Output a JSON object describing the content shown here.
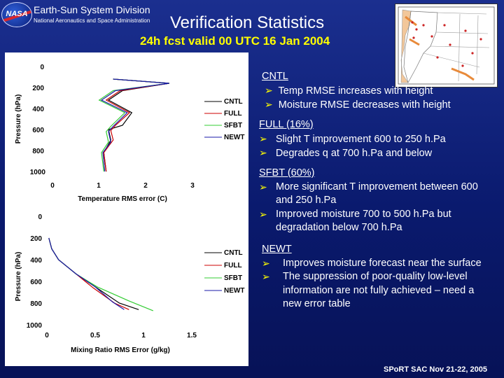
{
  "header": {
    "division": "Earth-Sun System Division",
    "agency": "National Aeronautics and Space Administration",
    "logo_text": "NASA",
    "title": "Verification Statistics",
    "subtitle": "24h fcst valid 00 UTC 16 Jan 2004"
  },
  "colors": {
    "subtitle": "#ffff00",
    "bullet": "#ffff00",
    "CNTL": "#000000",
    "FULL": "#cc0000",
    "SFBT": "#33cc33",
    "NEWT": "#1a1aaa"
  },
  "chart_data": [
    {
      "type": "line",
      "xlabel": "Temperature RMS error (C)",
      "ylabel": "Pressure (hPa)",
      "x_ticks": [
        "0",
        "1",
        "2",
        "3"
      ],
      "y_ticks": [
        "0",
        "200",
        "400",
        "600",
        "800",
        "1000"
      ],
      "xlim": [
        0,
        3
      ],
      "ylim": [
        1000,
        0
      ],
      "legend": "right",
      "series": [
        {
          "name": "CNTL",
          "color": "#000000",
          "points": [
            [
              1.3,
              120
            ],
            [
              2.5,
              160
            ],
            [
              1.5,
              230
            ],
            [
              1.2,
              320
            ],
            [
              1.7,
              440
            ],
            [
              1.5,
              560
            ],
            [
              1.2,
              600
            ],
            [
              1.25,
              700
            ],
            [
              1.1,
              820
            ],
            [
              1.15,
              1000
            ]
          ]
        },
        {
          "name": "FULL",
          "color": "#cc0000",
          "points": [
            [
              1.3,
              120
            ],
            [
              2.5,
              160
            ],
            [
              1.45,
              230
            ],
            [
              1.15,
              320
            ],
            [
              1.65,
              440
            ],
            [
              1.35,
              560
            ],
            [
              1.25,
              610
            ],
            [
              1.3,
              700
            ],
            [
              1.1,
              820
            ],
            [
              1.15,
              1000
            ]
          ]
        },
        {
          "name": "SFBT",
          "color": "#33cc33",
          "points": [
            [
              1.3,
              120
            ],
            [
              2.5,
              160
            ],
            [
              1.3,
              230
            ],
            [
              1.0,
              320
            ],
            [
              1.55,
              440
            ],
            [
              1.25,
              570
            ],
            [
              1.15,
              620
            ],
            [
              1.2,
              720
            ],
            [
              1.05,
              820
            ],
            [
              1.1,
              1000
            ]
          ]
        },
        {
          "name": "NEWT",
          "color": "#1a1aaa",
          "points": [
            [
              1.3,
              120
            ],
            [
              2.5,
              160
            ],
            [
              1.35,
              230
            ],
            [
              1.05,
              320
            ],
            [
              1.6,
              440
            ],
            [
              1.3,
              570
            ],
            [
              1.2,
              620
            ],
            [
              1.25,
              720
            ],
            [
              1.08,
              820
            ],
            [
              1.12,
              1000
            ]
          ]
        }
      ]
    },
    {
      "type": "line",
      "xlabel": "Mixing Ratio RMS Error (g/kg)",
      "ylabel": "Pressure (hPa)",
      "x_ticks": [
        "0",
        "0.5",
        "1",
        "1.5"
      ],
      "y_ticks": [
        "0",
        "200",
        "400",
        "600",
        "800",
        "1000"
      ],
      "xlim": [
        0,
        1.5
      ],
      "ylim": [
        1000,
        0
      ],
      "legend": "right",
      "series": [
        {
          "name": "CNTL",
          "color": "#000000",
          "points": [
            [
              0.02,
              200
            ],
            [
              0.05,
              300
            ],
            [
              0.12,
              400
            ],
            [
              0.3,
              530
            ],
            [
              0.5,
              650
            ],
            [
              0.75,
              800
            ],
            [
              0.95,
              860
            ]
          ]
        },
        {
          "name": "FULL",
          "color": "#cc0000",
          "points": [
            [
              0.02,
              200
            ],
            [
              0.05,
              300
            ],
            [
              0.12,
              400
            ],
            [
              0.3,
              530
            ],
            [
              0.48,
              660
            ],
            [
              0.7,
              800
            ],
            [
              0.85,
              860
            ]
          ]
        },
        {
          "name": "SFBT",
          "color": "#33cc33",
          "points": [
            [
              0.02,
              200
            ],
            [
              0.05,
              300
            ],
            [
              0.12,
              400
            ],
            [
              0.3,
              530
            ],
            [
              0.52,
              650
            ],
            [
              0.85,
              780
            ],
            [
              1.1,
              870
            ]
          ]
        },
        {
          "name": "NEWT",
          "color": "#1a1aaa",
          "points": [
            [
              0.02,
              200
            ],
            [
              0.05,
              300
            ],
            [
              0.12,
              400
            ],
            [
              0.3,
              530
            ],
            [
              0.5,
              650
            ],
            [
              0.68,
              790
            ],
            [
              0.8,
              860
            ]
          ]
        }
      ]
    }
  ],
  "notes": [
    {
      "heading": "CNTL",
      "bullets": [
        "Temp RMSE increases with height",
        "Moisture RMSE decreases with height"
      ]
    },
    {
      "heading": "FULL (16%)",
      "bullets": [
        "Slight T improvement 600 to 250 h.Pa",
        "Degrades q at 700 h.Pa and below"
      ]
    },
    {
      "heading": "SFBT (60%)",
      "bullets": [
        "More significant T improvement between 600 and 250 h.Pa",
        "Improved moisture 700 to 500 h.Pa but degradation below 700 h.Pa"
      ]
    },
    {
      "heading": "NEWT",
      "bullets": [
        "Improves moisture forecast near the surface",
        "The suppression of poor-quality low-level information are not fully achieved – need a new error table"
      ]
    }
  ],
  "footer": "SPoRT SAC Nov 21-22, 2005"
}
